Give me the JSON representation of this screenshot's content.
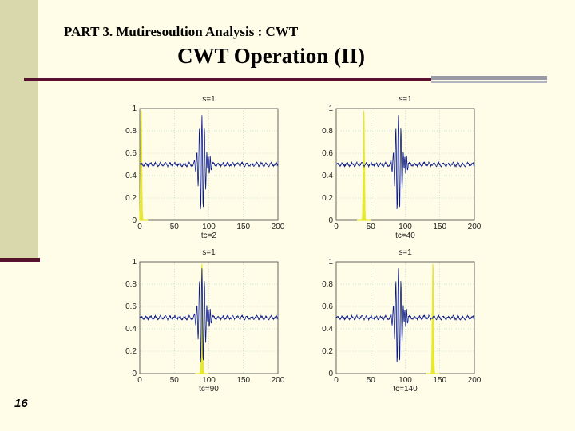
{
  "slide": {
    "section_title": "PART 3. Mutiresoultion Analysis : CWT",
    "main_title": "CWT Operation  (II)",
    "page_number": "16",
    "colors": {
      "background": "#fffde7",
      "sidebar": "#d8d8ac",
      "accent": "#5a1030",
      "signal": "#0a1a8c",
      "wavelet": "#e8e830"
    }
  },
  "chart_data": [
    {
      "type": "line",
      "title": "s=1",
      "xlabel": "tc=2",
      "xlim": [
        0,
        200
      ],
      "ylim": [
        0,
        1
      ],
      "x_ticks": [
        "0",
        "50",
        "100",
        "150",
        "200"
      ],
      "y_ticks": [
        "0",
        "0.2",
        "0.4",
        "0.6",
        "0.8",
        "1"
      ],
      "wavelet_center": 2
    },
    {
      "type": "line",
      "title": "s=1",
      "xlabel": "tc=40",
      "xlim": [
        0,
        200
      ],
      "ylim": [
        0,
        1
      ],
      "x_ticks": [
        "0",
        "50",
        "100",
        "150",
        "200"
      ],
      "y_ticks": [
        "0",
        "0.2",
        "0.4",
        "0.6",
        "0.8",
        "1"
      ],
      "wavelet_center": 40
    },
    {
      "type": "line",
      "title": "s=1",
      "xlabel": "tc=90",
      "xlim": [
        0,
        200
      ],
      "ylim": [
        0,
        1
      ],
      "x_ticks": [
        "0",
        "50",
        "100",
        "150",
        "200"
      ],
      "y_ticks": [
        "0",
        "0.2",
        "0.4",
        "0.6",
        "0.8",
        "1"
      ],
      "wavelet_center": 90
    },
    {
      "type": "line",
      "title": "s=1",
      "xlabel": "tc=140",
      "xlim": [
        0,
        200
      ],
      "ylim": [
        0,
        1
      ],
      "x_ticks": [
        "0",
        "50",
        "100",
        "150",
        "200"
      ],
      "y_ticks": [
        "0",
        "0.2",
        "0.4",
        "0.6",
        "0.8",
        "1"
      ],
      "wavelet_center": 140
    }
  ]
}
